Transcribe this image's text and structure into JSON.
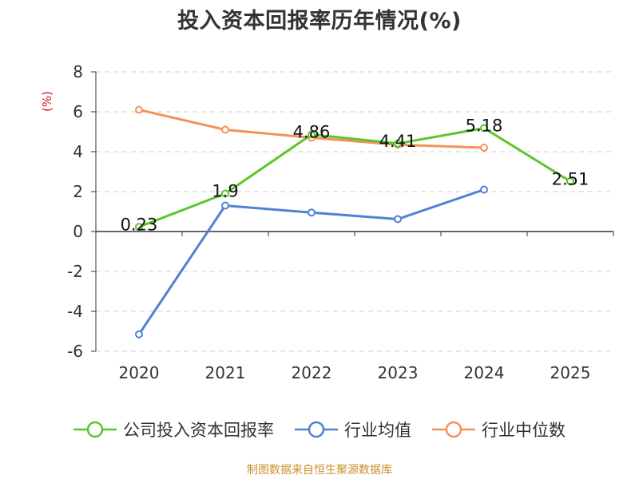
{
  "title": "投入资本回报率历年情况(%)",
  "chart_data": {
    "type": "line",
    "title": "投入资本回报率历年情况(%)",
    "y_unit_label": "(%)",
    "categories": [
      "2020",
      "2021",
      "2022",
      "2023",
      "2024",
      "2025"
    ],
    "ylim": [
      -6,
      8
    ],
    "y_ticks": [
      -6,
      -4,
      -2,
      0,
      2,
      4,
      6,
      8
    ],
    "grid": true,
    "legend_position": "bottom",
    "series": [
      {
        "name": "公司投入资本回报率",
        "color": "#5cc52b",
        "values": [
          0.23,
          1.9,
          4.86,
          4.41,
          5.18,
          2.51
        ],
        "data_labels": [
          "0.23",
          "1.9",
          "4.86",
          "4.41",
          "5.18",
          "2.51"
        ]
      },
      {
        "name": "行业均值",
        "color": "#4e82d6",
        "values": [
          -5.15,
          1.3,
          0.95,
          0.62,
          2.1,
          null
        ]
      },
      {
        "name": "行业中位数",
        "color": "#f5925a",
        "values": [
          6.1,
          5.1,
          4.7,
          4.35,
          4.2,
          null
        ]
      }
    ]
  },
  "source_note": "制图数据来自恒生聚源数据库"
}
